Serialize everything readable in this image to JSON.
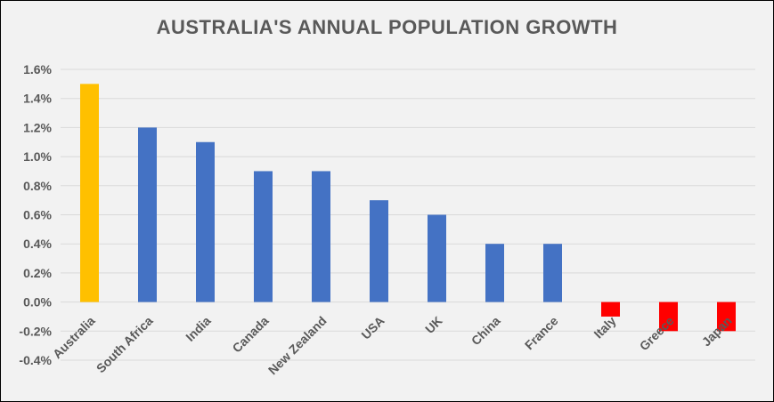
{
  "chart_data": {
    "type": "bar",
    "title": "AUSTRALIA'S ANNUAL POPULATION GROWTH",
    "xlabel": "",
    "ylabel": "",
    "categories": [
      "Australia",
      "South Africa",
      "India",
      "Canada",
      "New Zealand",
      "USA",
      "UK",
      "China",
      "France",
      "Italy",
      "Greece",
      "Japan"
    ],
    "values": [
      1.5,
      1.2,
      1.1,
      0.9,
      0.9,
      0.7,
      0.6,
      0.4,
      0.4,
      -0.1,
      -0.2,
      -0.2
    ],
    "colors": [
      "#ffc000",
      "#4472c4",
      "#4472c4",
      "#4472c4",
      "#4472c4",
      "#4472c4",
      "#4472c4",
      "#4472c4",
      "#4472c4",
      "#ff0000",
      "#ff0000",
      "#ff0000"
    ],
    "ylim": [
      -0.4,
      1.6
    ],
    "yticks": [
      "-0.4%",
      "-0.2%",
      "0.0%",
      "0.2%",
      "0.4%",
      "0.6%",
      "0.8%",
      "1.0%",
      "1.2%",
      "1.4%",
      "1.6%"
    ],
    "ytick_values": [
      -0.4,
      -0.2,
      0.0,
      0.2,
      0.4,
      0.6,
      0.8,
      1.0,
      1.2,
      1.4,
      1.6
    ],
    "grid": true,
    "legend": "none",
    "gridline_color": "#d9d9d9",
    "text_color": "#595959"
  }
}
